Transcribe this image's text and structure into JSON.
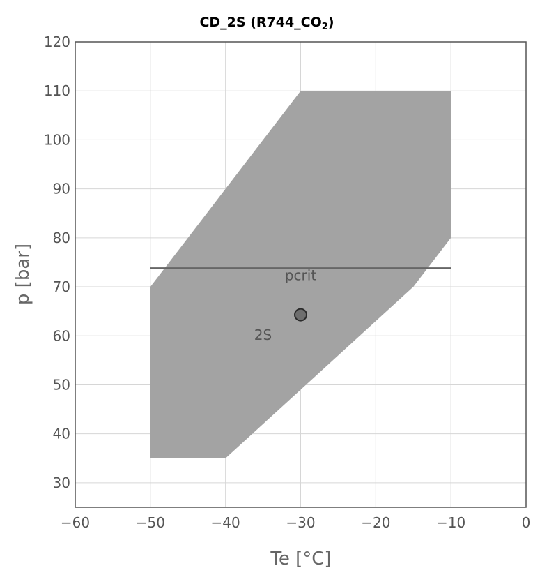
{
  "chart_data": {
    "type": "area",
    "title": {
      "main": "CD_2S (R744_CO",
      "subscript": "2",
      "close": ")"
    },
    "xlabel": "Te [°C]",
    "ylabel": "p [bar]",
    "xlim": [
      -60,
      0
    ],
    "ylim": [
      25,
      120
    ],
    "xticks": [
      -60,
      -50,
      -40,
      -30,
      -20,
      -10,
      0
    ],
    "yticks": [
      30,
      40,
      50,
      60,
      70,
      80,
      90,
      100,
      110,
      120
    ],
    "xtick_labels": [
      "−60",
      "−50",
      "−40",
      "−30",
      "−20",
      "−10",
      "0"
    ],
    "ytick_labels": [
      "30",
      "40",
      "50",
      "60",
      "70",
      "80",
      "90",
      "100",
      "110",
      "120"
    ],
    "grid": true,
    "envelope": {
      "x": [
        -50,
        -30,
        -10,
        -10,
        -15,
        -30,
        -40,
        -50
      ],
      "y": [
        70,
        110,
        110,
        80,
        70,
        49,
        35,
        35
      ],
      "color": "#a3a3a3"
    },
    "lines": [
      {
        "label": "pcrit",
        "x": [
          -50,
          -10
        ],
        "y": [
          73.8,
          73.8
        ],
        "color": "#666666"
      }
    ],
    "points": [
      {
        "label": "2S",
        "x": -30,
        "y": 64.3,
        "color": "#6e6e6e"
      }
    ]
  }
}
